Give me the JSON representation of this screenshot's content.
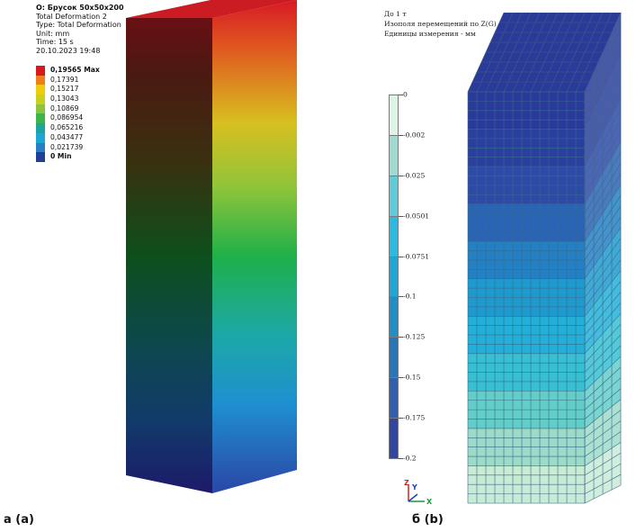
{
  "left_panel": {
    "header_lines": [
      "O: Брусок 50x50x200",
      "Total Deformation 2",
      "Type: Total Deformation",
      "Unit: mm",
      "Time: 15 s",
      "20.10.2023 19:48"
    ],
    "legend": [
      {
        "label": "0,19565 Max",
        "color": "#d7191c",
        "bold": true
      },
      {
        "label": "0,17391",
        "color": "#f07e1e",
        "bold": false
      },
      {
        "label": "0,15217",
        "color": "#f2cc0c",
        "bold": false
      },
      {
        "label": "0,13043",
        "color": "#c8d21e",
        "bold": false
      },
      {
        "label": "0,10869",
        "color": "#8cc43c",
        "bold": false
      },
      {
        "label": "0,086954",
        "color": "#3cb44a",
        "bold": false
      },
      {
        "label": "0,065216",
        "color": "#1ea59a",
        "bold": false
      },
      {
        "label": "0,043477",
        "color": "#1ca8d0",
        "bold": false
      },
      {
        "label": "0,021739",
        "color": "#2a7ec7",
        "bold": false
      },
      {
        "label": "0 Min",
        "color": "#243e98",
        "bold": true
      }
    ],
    "caption": "а (a)"
  },
  "right_panel": {
    "header_lines": [
      "До 1 т",
      "Изополя  перемещений по Z(G)",
      "Единицы измерения - мм"
    ],
    "legend_labels": [
      "0",
      "-0.002",
      "-0.025",
      "-0.0501",
      "-0.0751",
      "-0.1",
      "-0.125",
      "-0.15",
      "-0.175",
      "-0.2"
    ],
    "legend_colors": [
      "#dff2e6",
      "#9fd9cf",
      "#5ecbd6",
      "#2bbbe0",
      "#1fa5d6",
      "#1f8fc8",
      "#2677ba",
      "#2f5fae",
      "#2f47a0",
      "#2b3393"
    ],
    "axis_labels": {
      "z": "Z",
      "y": "Y",
      "x": "X"
    },
    "caption": "б (b)"
  },
  "colors": {
    "box_red": "#d31e26",
    "box_green": "#0f5a23",
    "box_blue": "#2a3fa0",
    "mesh_line": "#3a5f8a"
  }
}
